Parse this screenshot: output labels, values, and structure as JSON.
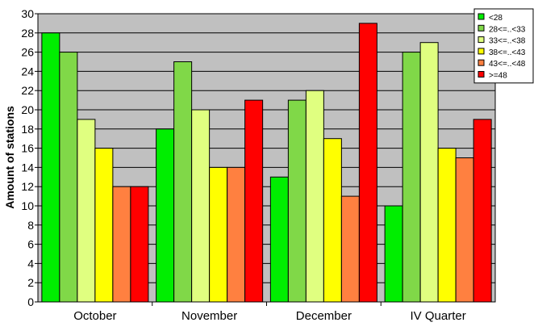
{
  "chart_data": {
    "type": "bar",
    "title": "",
    "xlabel": "",
    "ylabel": "Amount of stations",
    "categories": [
      "October",
      "November",
      "December",
      "IV Quarter"
    ],
    "series": [
      {
        "name": "<28",
        "values": [
          28,
          18,
          13,
          10
        ],
        "color": "#00ee00"
      },
      {
        "name": "28<=..<33",
        "values": [
          26,
          25,
          21,
          26
        ],
        "color": "#80d848"
      },
      {
        "name": "33<=..<38",
        "values": [
          19,
          20,
          22,
          27
        ],
        "color": "#e0ff80"
      },
      {
        "name": "38<=..<43",
        "values": [
          16,
          14,
          17,
          16
        ],
        "color": "#ffff00"
      },
      {
        "name": "43<=..<48",
        "values": [
          12,
          14,
          11,
          15
        ],
        "color": "#ff8040"
      },
      {
        "name": ">=48",
        "values": [
          12,
          21,
          29,
          19
        ],
        "color": "#ff0000"
      }
    ],
    "ylim": [
      0,
      30
    ],
    "yticks": [
      0,
      2,
      4,
      6,
      8,
      10,
      12,
      14,
      16,
      18,
      20,
      22,
      24,
      26,
      28,
      30
    ],
    "grid": true,
    "legend_position": "top-right",
    "plot_background": "#c0c0c0"
  }
}
